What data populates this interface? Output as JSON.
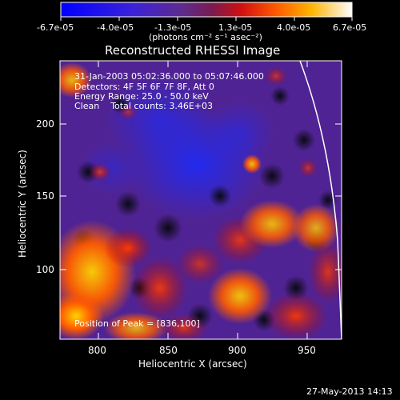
{
  "colorbar": {
    "ticks": [
      "-6.7e-05",
      "-4.0e-05",
      "-1.3e-05",
      "1.3e-05",
      "4.0e-05",
      "6.7e-05"
    ],
    "units": "(photons cm⁻² s⁻¹ asec⁻²)",
    "colors": [
      "#0a00ff",
      "#4a1fd1",
      "#5a2aa0",
      "#7a2f8f",
      "#b01818",
      "#ff2a00",
      "#ff8a00",
      "#ffe000",
      "#ffffff"
    ]
  },
  "plot": {
    "title": "Reconstructed RHESSI Image",
    "xlabel": "Heliocentric X (arcsec)",
    "ylabel": "Heliocentric Y (arcsec)",
    "xticks": [
      "800",
      "850",
      "900",
      "950"
    ],
    "yticks": [
      "100",
      "150",
      "200"
    ],
    "info_lines": [
      "31-Jan-2003 05:02:36.000 to 05:07:46.000",
      "Detectors: 4F 5F 6F 7F 8F, Att 0",
      "Energy Range: 25.0 - 50.0 keV",
      "Clean    Total counts: 3.46E+03"
    ],
    "peak_label": "Position of Peak = [836,100]"
  },
  "footer": {
    "date": "27-May-2013 14:13"
  }
}
